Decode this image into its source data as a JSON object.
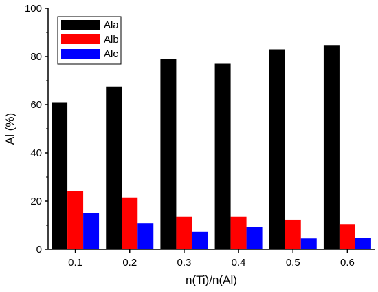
{
  "chart_data": {
    "type": "bar",
    "categories": [
      "0.1",
      "0.2",
      "0.3",
      "0.4",
      "0.5",
      "0.6"
    ],
    "series": [
      {
        "name": "Ala",
        "values": [
          61,
          67.5,
          79,
          77,
          83,
          84.5
        ],
        "color": "#000000"
      },
      {
        "name": "Alb",
        "values": [
          24,
          21.5,
          13.5,
          13.5,
          12.3,
          10.5
        ],
        "color": "#ff0000"
      },
      {
        "name": "Alc",
        "values": [
          15,
          10.8,
          7.2,
          9.2,
          4.5,
          4.7
        ],
        "color": "#0000ff"
      }
    ],
    "xlabel": "n(Ti)/n(Al)",
    "ylabel": "Al (%)",
    "ylim": [
      0,
      100
    ],
    "yticks": [
      "0",
      "20",
      "40",
      "60",
      "80",
      "100"
    ],
    "grid": false,
    "legend_position": "top-left"
  }
}
